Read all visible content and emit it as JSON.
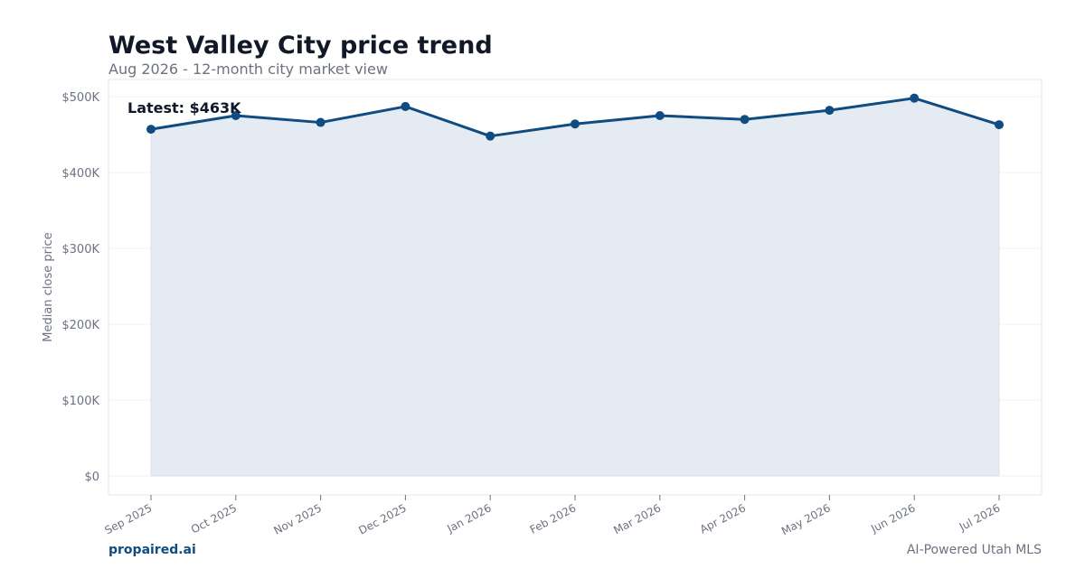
{
  "header": {
    "title": "West Valley City price trend",
    "subtitle": "Aug 2026 - 12-month city market view"
  },
  "footer": {
    "brand": "propaired.ai",
    "tagline": "AI-Powered Utah MLS"
  },
  "colors": {
    "line": "#0f4c81",
    "area": "#e5ebf3",
    "grid": "#eef0f3",
    "tick_text": "#6b7280"
  },
  "chart_data": {
    "type": "area",
    "categories": [
      "Sep 2025",
      "Oct 2025",
      "Nov 2025",
      "Dec 2025",
      "Jan 2026",
      "Feb 2026",
      "Mar 2026",
      "Apr 2026",
      "May 2026",
      "Jun 2026",
      "Jul 2026"
    ],
    "series": [
      {
        "values": [
          457000,
          475000,
          466000,
          487000,
          448000,
          464000,
          475000,
          470000,
          482000,
          498000,
          463000
        ]
      }
    ],
    "ylabel": "Median close price",
    "xlabel": "",
    "ylim": [
      0,
      500000
    ],
    "yticks": [
      0,
      100000,
      200000,
      300000,
      400000,
      500000
    ],
    "ytick_labels": [
      "$0",
      "$100K",
      "$200K",
      "$300K",
      "$400K",
      "$500K"
    ],
    "annotation": "Latest: $463K",
    "grid": true,
    "legend": "none"
  }
}
